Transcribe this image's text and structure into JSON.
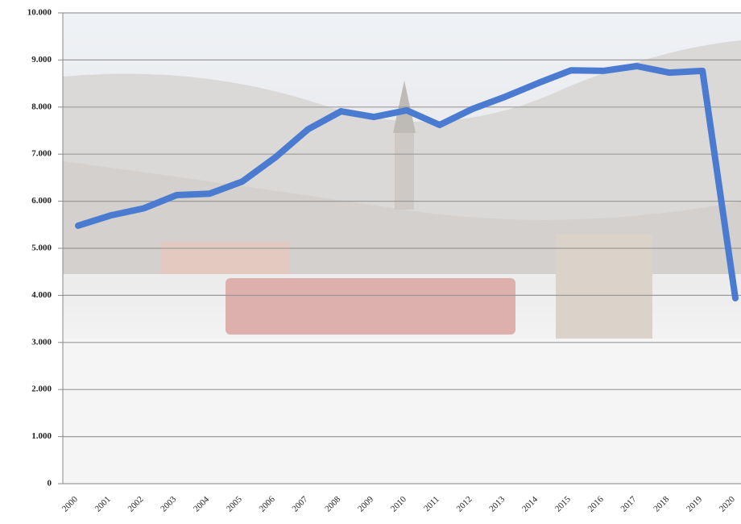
{
  "chart_data": {
    "type": "line",
    "categories": [
      "2000",
      "2001",
      "2002",
      "2003",
      "2004",
      "2005",
      "2006",
      "2007",
      "2008",
      "2009",
      "2010",
      "2011",
      "2012",
      "2013",
      "2014",
      "2015",
      "2016",
      "2017",
      "2018",
      "2019",
      "2020"
    ],
    "series": [
      {
        "color": "#4a7bd0",
        "values": [
          5480,
          5700,
          5850,
          6130,
          6160,
          6420,
          6930,
          7530,
          7910,
          7790,
          7930,
          7620,
          7960,
          8220,
          8510,
          8780,
          8770,
          8870,
          8730,
          8770,
          3940
        ]
      }
    ],
    "ylim": [
      0,
      10000
    ],
    "yticks": [
      0,
      {
        "value": 1000,
        "label": "1.000"
      },
      {
        "value": 2000,
        "label": "2.000"
      },
      {
        "value": 3000,
        "label": "3.000"
      },
      {
        "value": 4000,
        "label": "4.000"
      },
      {
        "value": 5000,
        "label": "5.000"
      },
      {
        "value": 6000,
        "label": "6.000"
      },
      {
        "value": 7000,
        "label": "7.000"
      },
      {
        "value": 8000,
        "label": "8.000"
      },
      {
        "value": 9000,
        "label": "9.000"
      },
      {
        "value": 10000,
        "label": "10.000"
      }
    ],
    "grid": true
  }
}
